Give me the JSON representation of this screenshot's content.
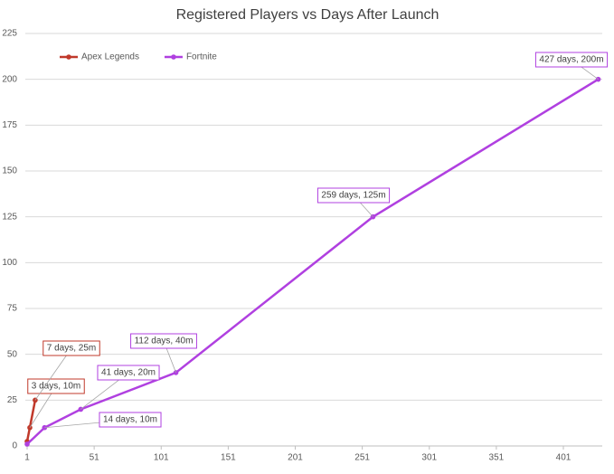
{
  "chart_data": {
    "type": "line",
    "title": "Registered Players vs Days After Launch",
    "xlim": [
      1,
      430
    ],
    "xticks": [
      1,
      51,
      101,
      151,
      201,
      251,
      301,
      351,
      401
    ],
    "ylim": [
      0,
      225
    ],
    "yticks": [
      0,
      25,
      50,
      75,
      100,
      125,
      150,
      175,
      200,
      225
    ],
    "grid": true,
    "legend": "top-left",
    "series": [
      {
        "name": "Apex Legends",
        "color": "#c0392b",
        "x": [
          1,
          3,
          7
        ],
        "values": [
          2.5,
          10,
          25
        ],
        "value_labels": [
          null,
          "3 days, 10m",
          "7 days, 25m"
        ]
      },
      {
        "name": "Fortnite",
        "color": "#b040e0",
        "x": [
          1,
          14,
          41,
          112,
          259,
          427
        ],
        "values": [
          1,
          10,
          20,
          40,
          125,
          200
        ],
        "value_labels": [
          null,
          "14 days, 10m",
          "41 days, 20m",
          "112 days, 40m",
          "259 days, 125m",
          "427 days, 200m"
        ]
      }
    ]
  }
}
